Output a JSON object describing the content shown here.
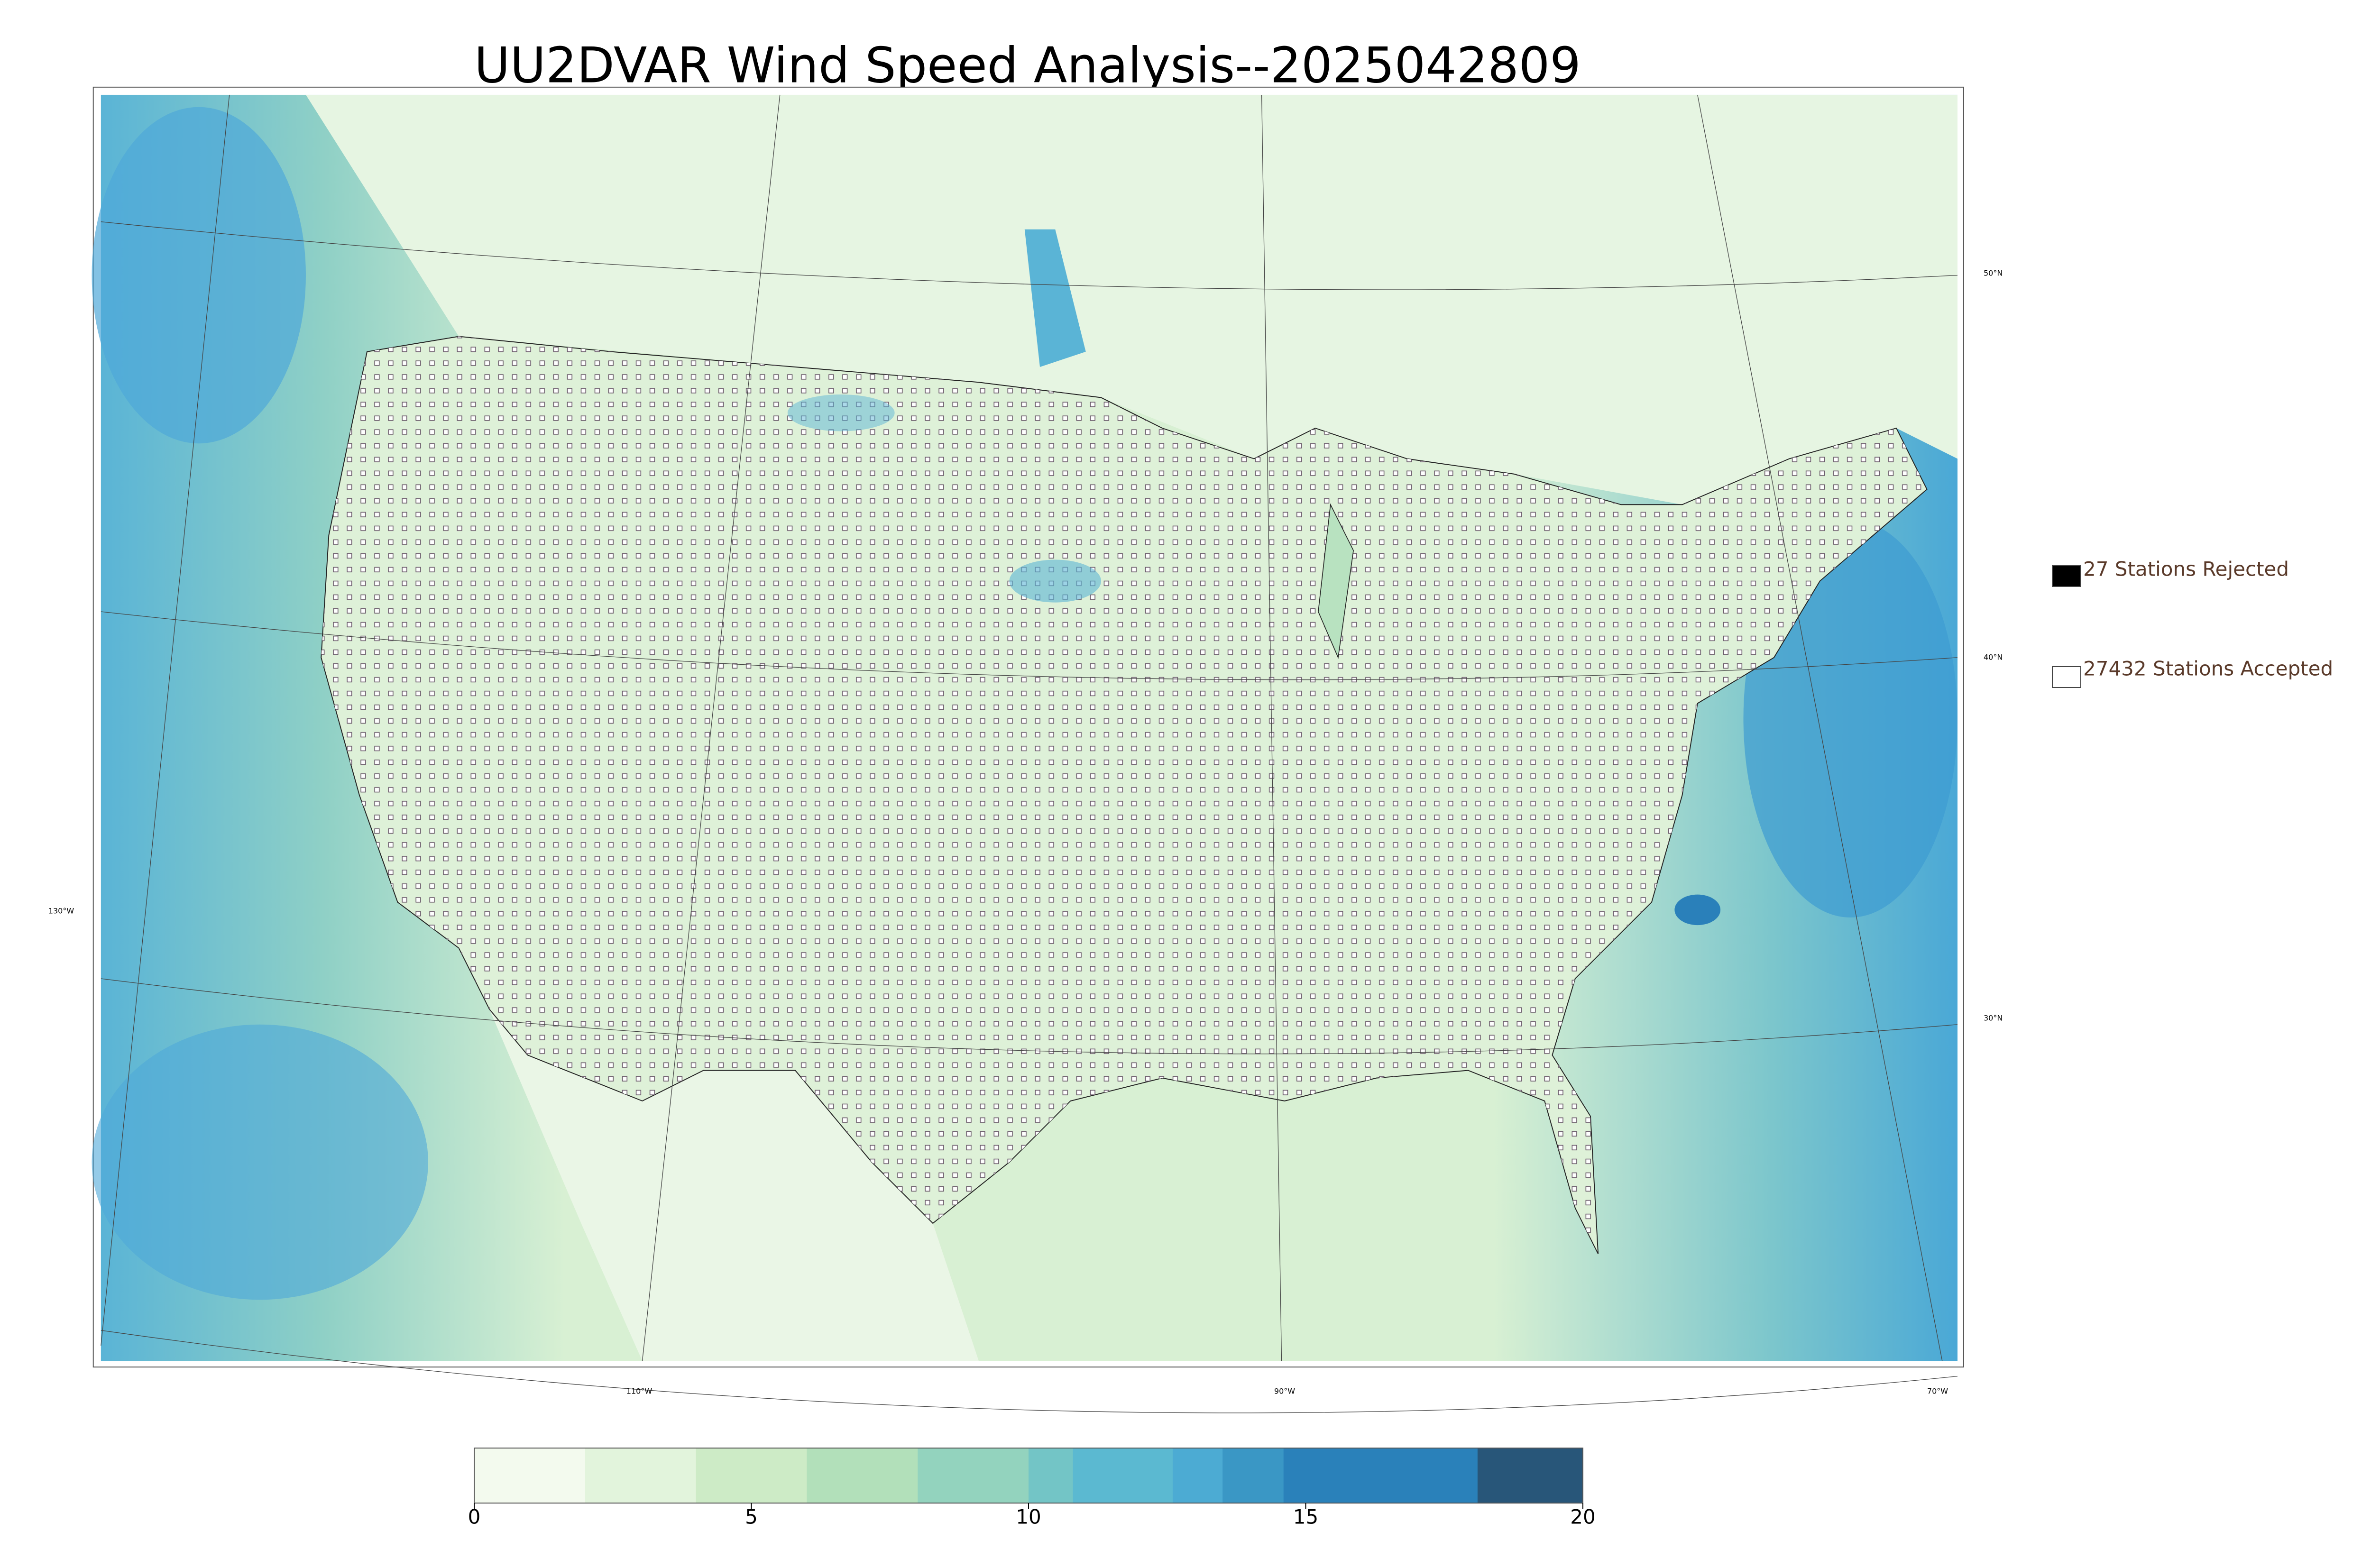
{
  "title": "UU2DVAR Wind Speed Analysis--2025042809",
  "map": {
    "lat_labels": [
      "50°N",
      "40°N",
      "30°N"
    ],
    "lon_labels": [
      "130°W",
      "110°W",
      "90°W",
      "70°W"
    ]
  },
  "legend": [
    {
      "label": "27 Stations Rejected",
      "color": "#000000"
    },
    {
      "label": "27432 Stations Accepted",
      "color": "#ffffff"
    }
  ],
  "colorbar": {
    "range": [
      0,
      20
    ],
    "ticks": [
      0,
      5,
      10,
      15,
      20
    ],
    "bounds": [
      0,
      2,
      4,
      6,
      8,
      10,
      10.8,
      12.6,
      13.5,
      14.6,
      18.1,
      20
    ],
    "colors": [
      "#f3faee",
      "#e2f4dc",
      "#cdebc6",
      "#b2e0ba",
      "#93d3be",
      "#73c5c6",
      "#5bb9d1",
      "#4cabd3",
      "#3a97c5",
      "#2a81ba",
      "#285679"
    ]
  }
}
